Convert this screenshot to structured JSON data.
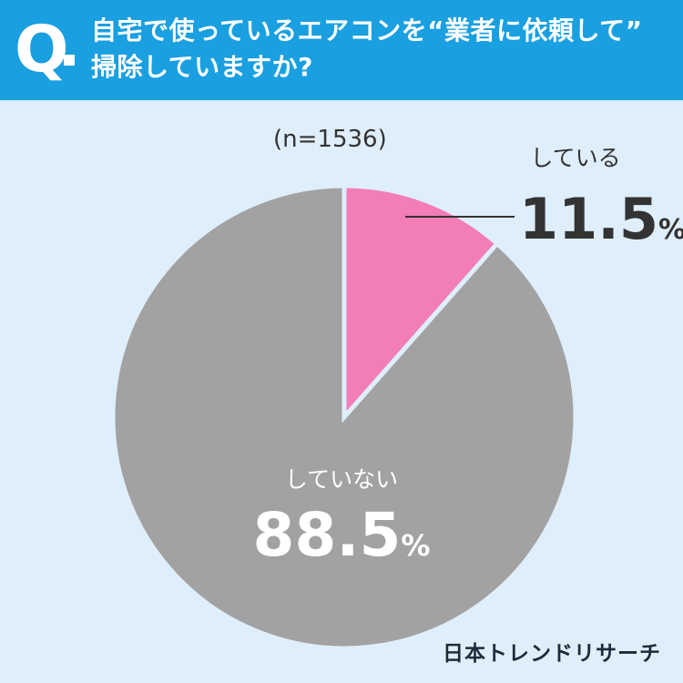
{
  "header": {
    "q_mark": "Q",
    "question_line1": "自宅で使っているエアコンを“業者に依頼して”",
    "question_line2": "掃除していますか?"
  },
  "sample_label": "(n=1536)",
  "chart_data": {
    "type": "pie",
    "title": "自宅で使っているエアコンを“業者に依頼して”掃除していますか?",
    "n": 1536,
    "slices": [
      {
        "label": "している",
        "value": 11.5,
        "value_text": "11.5",
        "unit": "%",
        "color": "#f27eb5"
      },
      {
        "label": "していない",
        "value": 88.5,
        "value_text": "88.5",
        "unit": "%",
        "color": "#a2a2a2"
      }
    ]
  },
  "logo": "日本トレンドリサーチ",
  "colors": {
    "header_bg": "#1a9fe0",
    "background": "#dfeefb",
    "slice_border": "#dfeefb"
  }
}
